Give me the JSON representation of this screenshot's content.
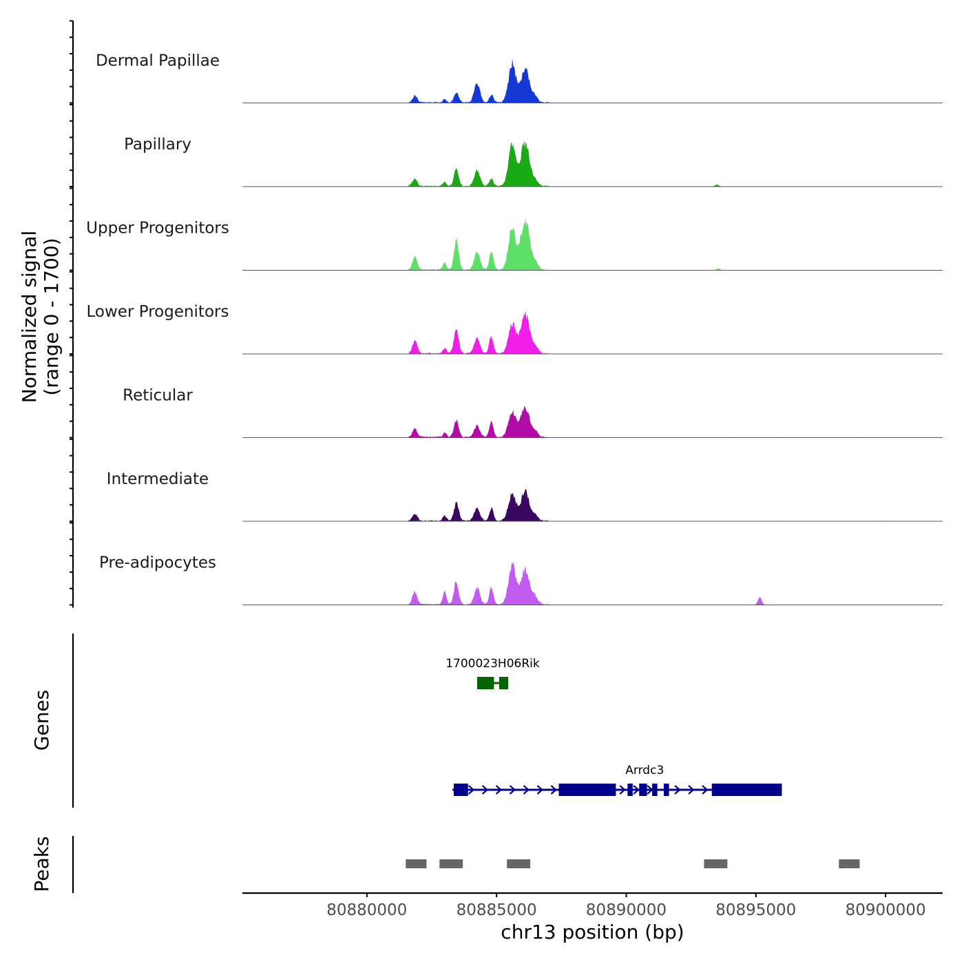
{
  "chart_data": {
    "type": "area",
    "chromosome": "chr13",
    "xlabel": "chr13 position (bp)",
    "xlim": [
      80875200,
      80902200
    ],
    "x_ticks": [
      80880000,
      80885000,
      80890000,
      80895000,
      80900000
    ],
    "x_tick_labels": [
      "80880000",
      "80885000",
      "80890000",
      "80895000",
      "80900000"
    ],
    "coverage": {
      "ylabel_line1": "Normalized signal",
      "ylabel_line2": "(range 0 - 1700)",
      "ylim": [
        0,
        1700
      ],
      "tracks": [
        {
          "name": "Dermal Papillae",
          "color": "#1539d6",
          "peak_heights": [
            230,
            110,
            330,
            660,
            260,
            1300,
            1150,
            180
          ],
          "extra": []
        },
        {
          "name": "Papillary",
          "color": "#1aaa14",
          "peak_heights": [
            250,
            130,
            580,
            540,
            240,
            1400,
            1480,
            170
          ],
          "extra": [
            {
              "pos": 80893500,
              "height": 60
            }
          ]
        },
        {
          "name": "Upper Progenitors",
          "color": "#5ee068",
          "peak_heights": [
            420,
            240,
            1000,
            600,
            630,
            1380,
            1700,
            230
          ],
          "extra": [
            {
              "pos": 80893550,
              "height": 50
            }
          ]
        },
        {
          "name": "Lower Progenitors",
          "color": "#f01ee8",
          "peak_heights": [
            450,
            190,
            830,
            520,
            580,
            980,
            1350,
            220
          ],
          "extra": []
        },
        {
          "name": "Reticular",
          "color": "#b20ba8",
          "peak_heights": [
            280,
            150,
            580,
            370,
            500,
            880,
            1000,
            180
          ],
          "extra": []
        },
        {
          "name": "Intermediate",
          "color": "#3a0860",
          "peak_heights": [
            240,
            170,
            600,
            410,
            430,
            900,
            980,
            160
          ],
          "extra": []
        },
        {
          "name": "Pre-adipocytes",
          "color": "#c25cf0",
          "peak_heights": [
            440,
            420,
            780,
            550,
            580,
            1350,
            1200,
            230
          ],
          "extra": [
            {
              "pos": 80895150,
              "height": 230
            }
          ]
        }
      ],
      "peak_centers": [
        80881850,
        80883000,
        80883450,
        80884250,
        80884800,
        80885600,
        80886100,
        80886500
      ]
    },
    "genes_track_label": "Genes",
    "genes": [
      {
        "name": "1700023H06Rik",
        "color": "#006400",
        "start": 80884250,
        "end": 80885450,
        "strand": "+",
        "exons": [
          [
            80884250,
            80884900
          ],
          [
            80885100,
            80885450
          ]
        ]
      },
      {
        "name": "Arrdc3",
        "color": "#00008b",
        "start": 80883300,
        "end": 80896000,
        "strand": "+",
        "exons": [
          [
            80883350,
            80883900
          ],
          [
            80887400,
            80889600
          ],
          [
            80890050,
            80890250
          ],
          [
            80890500,
            80890800
          ],
          [
            80891000,
            80891200
          ],
          [
            80891450,
            80891650
          ],
          [
            80893300,
            80896000
          ]
        ]
      }
    ],
    "peaks_track_label": "Peaks",
    "peaks": [
      [
        80881500,
        80882300
      ],
      [
        80882800,
        80883700
      ],
      [
        80885400,
        80886300
      ],
      [
        80893000,
        80893900
      ],
      [
        80898200,
        80899000
      ]
    ],
    "peak_color": "#666666"
  }
}
